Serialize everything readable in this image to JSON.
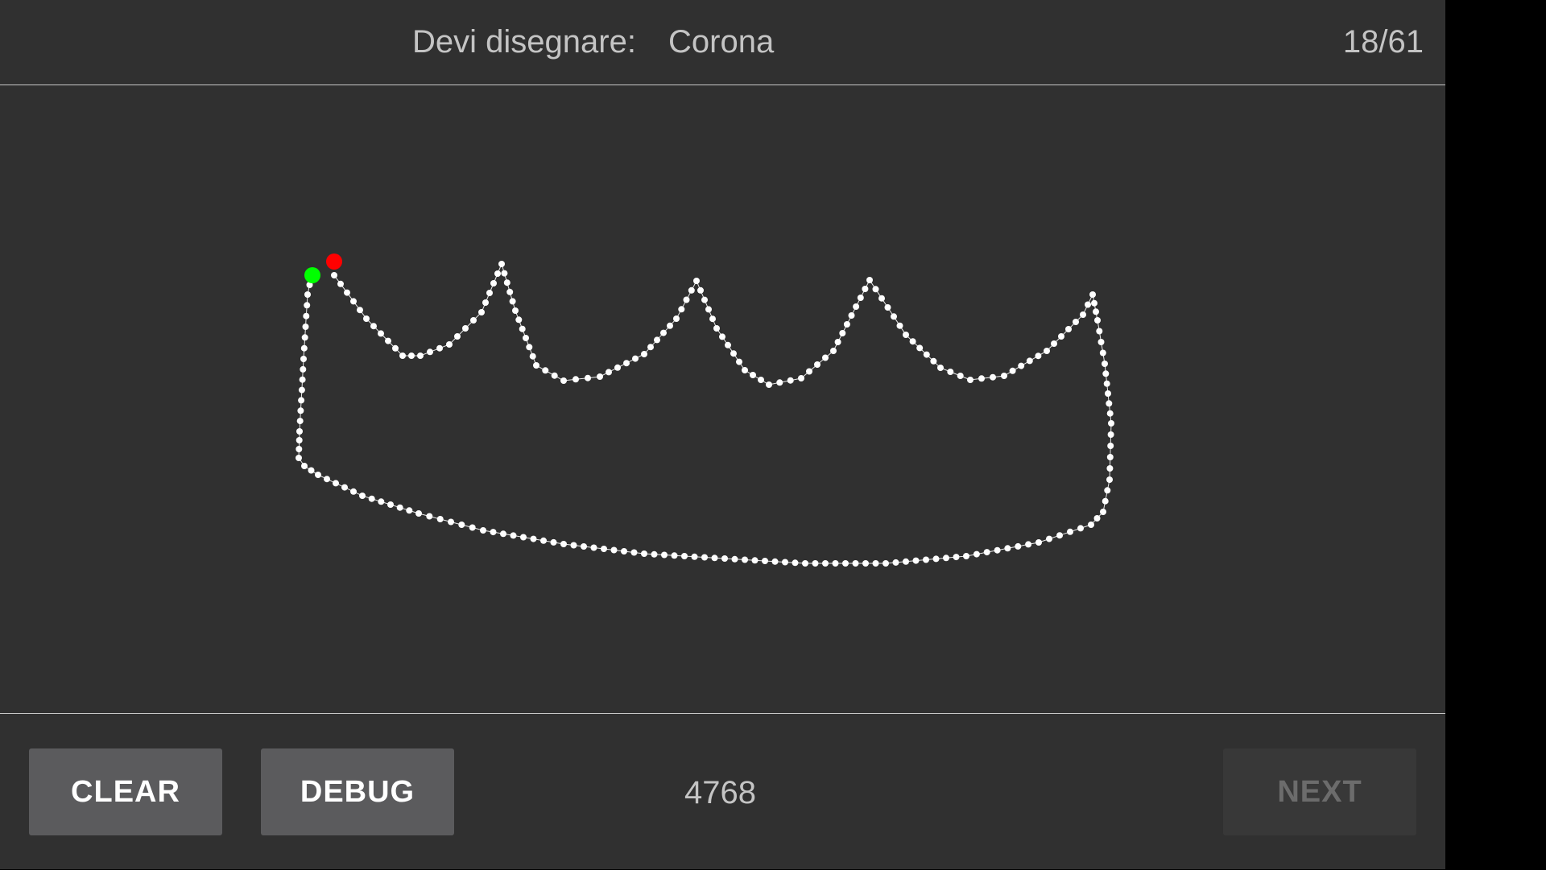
{
  "header": {
    "prompt_label": "Devi disegnare:",
    "prompt_word": "Corona",
    "counter": "18/61"
  },
  "footer": {
    "clear_label": "CLEAR",
    "debug_label": "DEBUG",
    "score": "4768",
    "next_label": "NEXT",
    "next_enabled": false
  },
  "drawing": {
    "stroke_color": "#ffffff",
    "start_marker_color": "#00ff00",
    "end_marker_color": "#ff0000"
  },
  "colors": {
    "background": "#303030",
    "text": "#c4c4c4",
    "button": "#5b5b5d",
    "button_disabled": "#383838"
  }
}
